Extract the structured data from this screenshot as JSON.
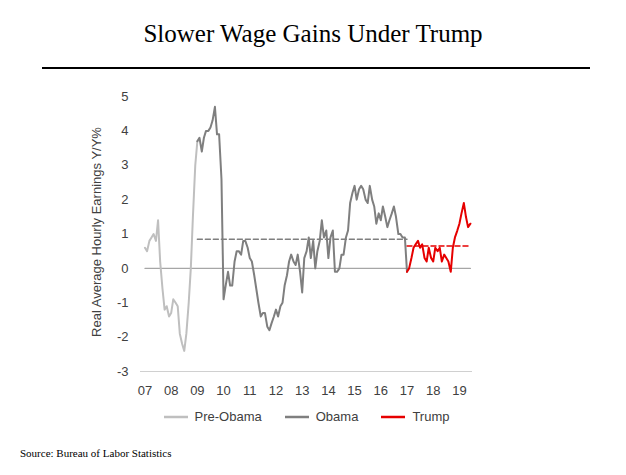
{
  "chart_data": {
    "type": "line",
    "title": "Slower Wage Gains Under Trump",
    "y_label": "Real Average Hourly Earnings Y/Y%",
    "source": "Source: Bureau of Labor Statistics",
    "legend": "bottom",
    "x": [
      2007,
      2007.08,
      2007.17,
      2007.25,
      2007.33,
      2007.42,
      2007.5,
      2007.58,
      2007.67,
      2007.75,
      2007.83,
      2007.92,
      2008,
      2008.08,
      2008.17,
      2008.25,
      2008.33,
      2008.42,
      2008.5,
      2008.58,
      2008.67,
      2008.75,
      2008.83,
      2008.92,
      2009,
      2009.08,
      2009.17,
      2009.25,
      2009.33,
      2009.42,
      2009.5,
      2009.58,
      2009.67,
      2009.75,
      2009.83,
      2009.92,
      2010,
      2010.08,
      2010.17,
      2010.25,
      2010.33,
      2010.42,
      2010.5,
      2010.58,
      2010.67,
      2010.75,
      2010.83,
      2010.92,
      2011,
      2011.08,
      2011.17,
      2011.25,
      2011.33,
      2011.42,
      2011.5,
      2011.58,
      2011.67,
      2011.75,
      2011.83,
      2011.92,
      2012,
      2012.08,
      2012.17,
      2012.25,
      2012.33,
      2012.42,
      2012.5,
      2012.58,
      2012.67,
      2012.75,
      2012.83,
      2012.92,
      2013,
      2013.08,
      2013.17,
      2013.25,
      2013.33,
      2013.42,
      2013.5,
      2013.58,
      2013.67,
      2013.75,
      2013.83,
      2013.92,
      2014,
      2014.08,
      2014.17,
      2014.25,
      2014.33,
      2014.42,
      2014.5,
      2014.58,
      2014.67,
      2014.75,
      2014.83,
      2014.92,
      2015,
      2015.08,
      2015.17,
      2015.25,
      2015.33,
      2015.42,
      2015.5,
      2015.58,
      2015.67,
      2015.75,
      2015.83,
      2015.92,
      2016,
      2016.08,
      2016.17,
      2016.25,
      2016.33,
      2016.42,
      2016.5,
      2016.58,
      2016.67,
      2016.75,
      2016.83,
      2016.92,
      2017,
      2017.08,
      2017.17,
      2017.25,
      2017.33,
      2017.42,
      2017.5,
      2017.58,
      2017.67,
      2017.75,
      2017.83,
      2017.92,
      2018,
      2018.08,
      2018.17,
      2018.25,
      2018.33,
      2018.42,
      2018.5,
      2018.58,
      2018.67,
      2018.75,
      2018.83,
      2018.92,
      2019,
      2019.08,
      2019.17,
      2019.25,
      2019.33,
      2019.42
    ],
    "series": [
      {
        "color": "#a6a6a6",
        "line_style": "solid",
        "values": [
          0,
          0,
          0,
          0,
          0,
          0,
          0,
          0,
          0,
          0,
          0,
          0,
          0,
          0,
          0,
          0,
          0,
          0,
          0,
          0,
          0,
          0,
          0,
          0,
          0,
          0,
          0,
          0,
          0,
          0,
          0,
          0,
          0,
          0,
          0,
          0,
          0,
          0,
          0,
          0,
          0,
          0,
          0,
          0,
          0,
          0,
          0,
          0,
          0,
          0,
          0,
          0,
          0,
          0,
          0,
          0,
          0,
          0,
          0,
          0,
          0,
          0,
          0,
          0,
          0,
          0,
          0,
          0,
          0,
          0,
          0,
          0,
          0,
          0,
          0,
          0,
          0,
          0,
          0,
          0,
          0,
          0,
          0,
          0,
          0,
          0,
          0,
          0,
          0,
          0,
          0,
          0,
          0,
          0,
          0,
          0,
          0,
          0,
          0,
          0,
          0,
          0,
          0,
          0,
          0,
          0,
          0,
          0,
          0,
          0,
          0,
          0,
          0,
          0,
          0,
          0,
          0,
          0,
          0,
          0,
          0,
          0,
          0,
          0,
          0,
          0,
          0,
          0,
          0,
          0,
          0,
          0,
          0,
          0,
          0,
          0,
          0,
          0,
          0,
          0,
          0,
          0,
          0,
          0,
          0,
          0,
          0,
          0,
          0,
          0
        ]
      },
      {
        "color": "#7f7f7f",
        "line_style": "dashed",
        "values": [
          null,
          null,
          null,
          null,
          null,
          null,
          null,
          null,
          null,
          null,
          null,
          null,
          null,
          null,
          null,
          null,
          null,
          null,
          null,
          null,
          null,
          null,
          null,
          null,
          0.85,
          0.85,
          0.85,
          0.85,
          0.85,
          0.85,
          0.85,
          0.85,
          0.85,
          0.85,
          0.85,
          0.85,
          0.85,
          0.85,
          0.85,
          0.85,
          0.85,
          0.85,
          0.85,
          0.85,
          0.85,
          0.85,
          0.85,
          0.85,
          0.85,
          0.85,
          0.85,
          0.85,
          0.85,
          0.85,
          0.85,
          0.85,
          0.85,
          0.85,
          0.85,
          0.85,
          0.85,
          0.85,
          0.85,
          0.85,
          0.85,
          0.85,
          0.85,
          0.85,
          0.85,
          0.85,
          0.85,
          0.85,
          0.85,
          0.85,
          0.85,
          0.85,
          0.85,
          0.85,
          0.85,
          0.85,
          0.85,
          0.85,
          0.85,
          0.85,
          0.85,
          0.85,
          0.85,
          0.85,
          0.85,
          0.85,
          0.85,
          0.85,
          0.85,
          0.85,
          0.85,
          0.85,
          0.85,
          0.85,
          0.85,
          0.85,
          0.85,
          0.85,
          0.85,
          0.85,
          0.85,
          0.85,
          0.85,
          0.85,
          0.85,
          0.85,
          0.85,
          0.85,
          0.85,
          0.85,
          0.85,
          0.85,
          0.85,
          0.85,
          0.85,
          0.85,
          0.85,
          null,
          null,
          null,
          null,
          null,
          null,
          null,
          null,
          null,
          null,
          null,
          null,
          null,
          null,
          null,
          null,
          null,
          null,
          null,
          null,
          null,
          null,
          null,
          null,
          null,
          null,
          null,
          null,
          null
        ]
      },
      {
        "color": "#e60000",
        "line_style": "dashed",
        "values": [
          null,
          null,
          null,
          null,
          null,
          null,
          null,
          null,
          null,
          null,
          null,
          null,
          null,
          null,
          null,
          null,
          null,
          null,
          null,
          null,
          null,
          null,
          null,
          null,
          null,
          null,
          null,
          null,
          null,
          null,
          null,
          null,
          null,
          null,
          null,
          null,
          null,
          null,
          null,
          null,
          null,
          null,
          null,
          null,
          null,
          null,
          null,
          null,
          null,
          null,
          null,
          null,
          null,
          null,
          null,
          null,
          null,
          null,
          null,
          null,
          null,
          null,
          null,
          null,
          null,
          null,
          null,
          null,
          null,
          null,
          null,
          null,
          null,
          null,
          null,
          null,
          null,
          null,
          null,
          null,
          null,
          null,
          null,
          null,
          null,
          null,
          null,
          null,
          null,
          null,
          null,
          null,
          null,
          null,
          null,
          null,
          null,
          null,
          null,
          null,
          null,
          null,
          null,
          null,
          null,
          null,
          null,
          null,
          null,
          null,
          null,
          null,
          null,
          null,
          null,
          null,
          null,
          null,
          null,
          null,
          0.65,
          0.65,
          0.65,
          0.65,
          0.65,
          0.65,
          0.65,
          0.65,
          0.65,
          0.65,
          0.65,
          0.65,
          0.65,
          0.65,
          0.65,
          0.65,
          0.65,
          0.65,
          0.65,
          0.65,
          0.65,
          0.65,
          0.65,
          0.65,
          0.65,
          0.65,
          0.65,
          0.65,
          0.65,
          0.65
        ]
      },
      {
        "name": "Pre-Obama",
        "color": "#bfbfbf",
        "line_style": "solid",
        "values": [
          0.6,
          0.5,
          0.8,
          0.9,
          1.0,
          0.8,
          1.4,
          0.2,
          -0.6,
          -1.2,
          -1.1,
          -1.4,
          -1.3,
          -0.9,
          -1.0,
          -1.1,
          -1.9,
          -2.2,
          -2.4,
          -1.9,
          -1.0,
          0.0,
          1.5,
          3.0,
          3.7,
          null,
          null,
          null,
          null,
          null,
          null,
          null,
          null,
          null,
          null,
          null,
          null,
          null,
          null,
          null,
          null,
          null,
          null,
          null,
          null,
          null,
          null,
          null,
          null,
          null,
          null,
          null,
          null,
          null,
          null,
          null,
          null,
          null,
          null,
          null,
          null,
          null,
          null,
          null,
          null,
          null,
          null,
          null,
          null,
          null,
          null,
          null,
          null,
          null,
          null,
          null,
          null,
          null,
          null,
          null,
          null,
          null,
          null,
          null,
          null,
          null,
          null,
          null,
          null,
          null,
          null,
          null,
          null,
          null,
          null,
          null,
          null,
          null,
          null,
          null,
          null,
          null,
          null,
          null,
          null,
          null,
          null,
          null,
          null,
          null,
          null,
          null,
          null,
          null,
          null,
          null,
          null,
          null,
          null,
          null,
          null,
          null,
          null,
          null,
          null,
          null,
          null,
          null,
          null,
          null,
          null,
          null,
          null,
          null,
          null,
          null,
          null,
          null,
          null,
          null,
          null,
          null,
          null,
          null,
          null,
          null,
          null,
          null,
          null,
          null
        ]
      },
      {
        "name": "Obama",
        "color": "#7f7f7f",
        "line_style": "solid",
        "values": [
          null,
          null,
          null,
          null,
          null,
          null,
          null,
          null,
          null,
          null,
          null,
          null,
          null,
          null,
          null,
          null,
          null,
          null,
          null,
          null,
          null,
          null,
          null,
          null,
          3.7,
          3.8,
          3.4,
          3.8,
          4.0,
          4.0,
          4.1,
          4.3,
          4.7,
          3.9,
          3.9,
          2.6,
          -0.9,
          -0.5,
          -0.1,
          -0.5,
          -0.5,
          0.2,
          0.5,
          0.5,
          0.4,
          0.8,
          0.8,
          0.6,
          0.3,
          0.2,
          -0.2,
          -0.6,
          -1.0,
          -1.4,
          -1.3,
          -1.3,
          -1.7,
          -1.8,
          -1.6,
          -1.4,
          -1.2,
          -1.4,
          -1.1,
          -1.0,
          -0.5,
          -0.2,
          0.2,
          0.4,
          0.2,
          0.1,
          0.4,
          -0.1,
          -0.7,
          0.3,
          0.5,
          0.9,
          0.3,
          0.8,
          0.0,
          0.5,
          0.8,
          1.4,
          0.9,
          1.1,
          0.3,
          0.9,
          1.1,
          -0.1,
          -0.1,
          0.0,
          0.4,
          0.4,
          0.9,
          1.1,
          1.9,
          2.2,
          2.4,
          2.0,
          2.3,
          2.4,
          2.3,
          2.0,
          1.9,
          2.4,
          2.0,
          1.8,
          1.3,
          1.6,
          1.4,
          1.8,
          1.5,
          1.2,
          1.4,
          1.6,
          1.8,
          1.5,
          1.0,
          1.0,
          0.9,
          0.9,
          -0.1,
          null,
          null,
          null,
          null,
          null,
          null,
          null,
          null,
          null,
          null,
          null,
          null,
          null,
          null,
          null,
          null,
          null,
          null,
          null,
          null,
          null,
          null,
          null,
          null,
          null,
          null,
          null,
          null,
          null
        ]
      },
      {
        "name": "Trump",
        "color": "#e60000",
        "line_style": "solid",
        "values": [
          null,
          null,
          null,
          null,
          null,
          null,
          null,
          null,
          null,
          null,
          null,
          null,
          null,
          null,
          null,
          null,
          null,
          null,
          null,
          null,
          null,
          null,
          null,
          null,
          null,
          null,
          null,
          null,
          null,
          null,
          null,
          null,
          null,
          null,
          null,
          null,
          null,
          null,
          null,
          null,
          null,
          null,
          null,
          null,
          null,
          null,
          null,
          null,
          null,
          null,
          null,
          null,
          null,
          null,
          null,
          null,
          null,
          null,
          null,
          null,
          null,
          null,
          null,
          null,
          null,
          null,
          null,
          null,
          null,
          null,
          null,
          null,
          null,
          null,
          null,
          null,
          null,
          null,
          null,
          null,
          null,
          null,
          null,
          null,
          null,
          null,
          null,
          null,
          null,
          null,
          null,
          null,
          null,
          null,
          null,
          null,
          null,
          null,
          null,
          null,
          null,
          null,
          null,
          null,
          null,
          null,
          null,
          null,
          null,
          null,
          null,
          null,
          null,
          null,
          null,
          null,
          null,
          null,
          null,
          null,
          -0.1,
          0.0,
          0.3,
          0.6,
          0.7,
          0.8,
          0.6,
          0.7,
          0.3,
          0.2,
          0.6,
          0.3,
          0.2,
          0.6,
          0.5,
          0.6,
          0.2,
          0.4,
          0.3,
          0.2,
          -0.1,
          0.6,
          0.9,
          1.1,
          1.3,
          1.6,
          1.9,
          1.5,
          1.2,
          1.3
        ]
      }
    ],
    "xlim": [
      2006.83,
      2019.5
    ],
    "xticks": [
      {
        "value": 2007,
        "label": "07"
      },
      {
        "value": 2008,
        "label": "08"
      },
      {
        "value": 2009,
        "label": "09"
      },
      {
        "value": 2010,
        "label": "10"
      },
      {
        "value": 2011,
        "label": "11"
      },
      {
        "value": 2012,
        "label": "12"
      },
      {
        "value": 2013,
        "label": "13"
      },
      {
        "value": 2014,
        "label": "14"
      },
      {
        "value": 2015,
        "label": "15"
      },
      {
        "value": 2016,
        "label": "16"
      },
      {
        "value": 2017,
        "label": "17"
      },
      {
        "value": 2018,
        "label": "18"
      },
      {
        "value": 2019,
        "label": "19"
      }
    ],
    "ylim": [
      -3,
      5
    ],
    "yticks": [
      -3,
      -2,
      -1,
      0,
      1,
      2,
      3,
      4,
      5
    ],
    "grid": false
  }
}
